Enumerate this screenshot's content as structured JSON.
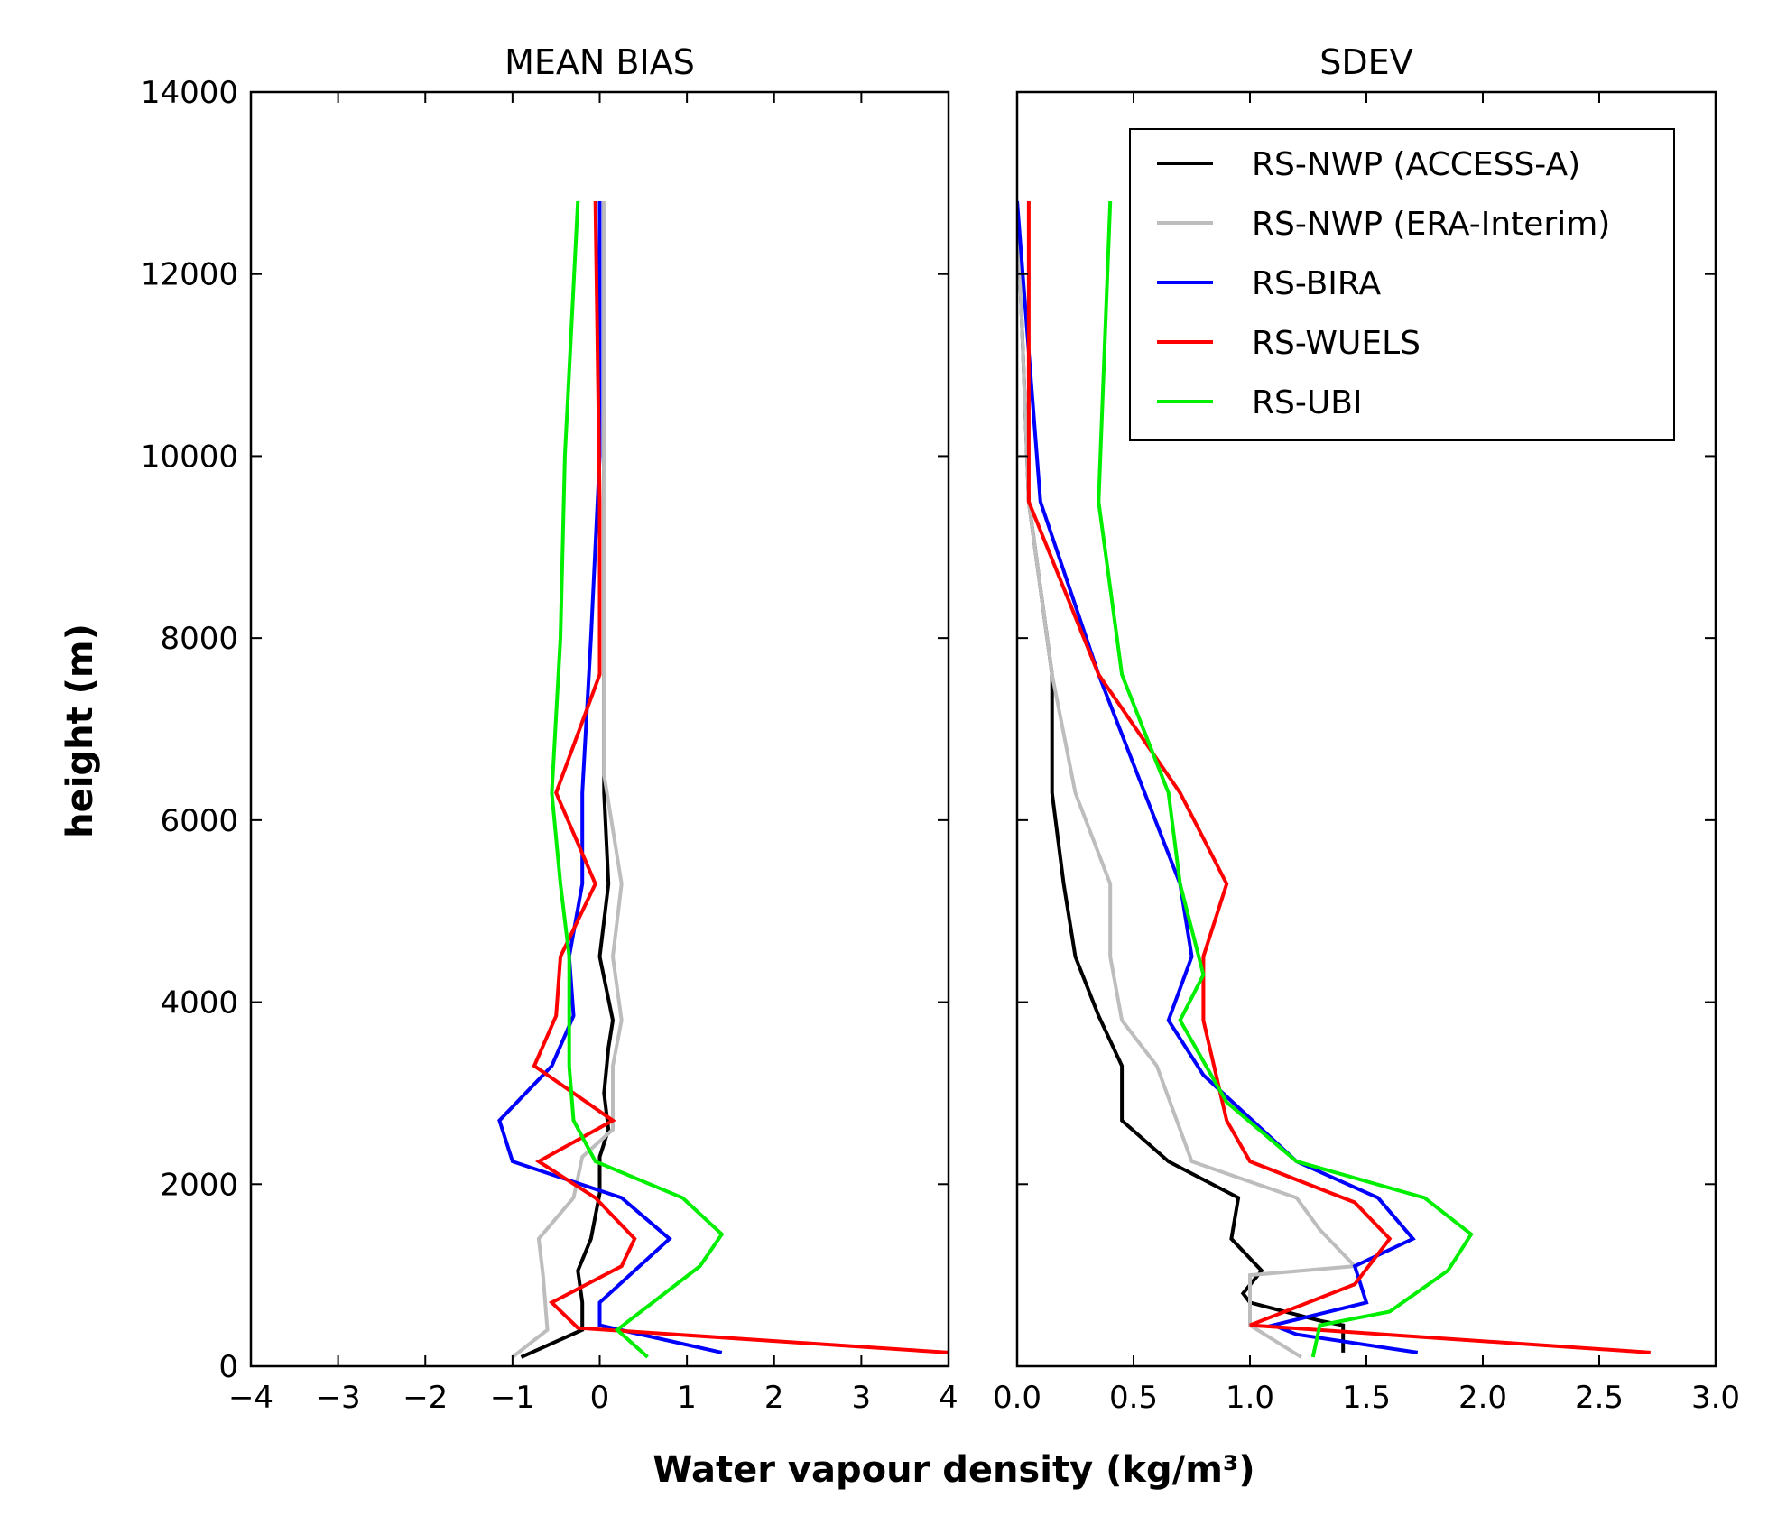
{
  "chart_data": [
    {
      "type": "line",
      "title": "MEAN BIAS",
      "xlabel": "Water vapour density (kg/m³)",
      "ylabel": "height (m)",
      "xlim": [
        -4,
        4
      ],
      "ylim": [
        0,
        14000
      ],
      "xticks": [
        "−4",
        "−3",
        "−2",
        "−1",
        "0",
        "1",
        "2",
        "3",
        "4"
      ],
      "yticks": [
        "0",
        "2000",
        "4000",
        "6000",
        "8000",
        "10000",
        "12000",
        "14000"
      ],
      "series": [
        {
          "name": "RS-NWP (ACCESS-A)",
          "color": "#000000",
          "points": [
            [
              -0.9,
              100
            ],
            [
              -0.2,
              400
            ],
            [
              -0.2,
              700
            ],
            [
              -0.25,
              1050
            ],
            [
              -0.1,
              1400
            ],
            [
              0.0,
              1900
            ],
            [
              0.0,
              2300
            ],
            [
              0.1,
              2600
            ],
            [
              0.05,
              3000
            ],
            [
              0.1,
              3500
            ],
            [
              0.15,
              3800
            ],
            [
              0.0,
              4500
            ],
            [
              0.1,
              5300
            ],
            [
              0.05,
              6300
            ],
            [
              0.05,
              7500
            ],
            [
              0.05,
              9500
            ],
            [
              0.05,
              12800
            ]
          ]
        },
        {
          "name": "RS-NWP (ERA-Interim)",
          "color": "#bdbdbd",
          "points": [
            [
              -1.0,
              100
            ],
            [
              -0.6,
              400
            ],
            [
              -0.65,
              1000
            ],
            [
              -0.7,
              1400
            ],
            [
              -0.3,
              1850
            ],
            [
              -0.2,
              2300
            ],
            [
              0.15,
              2600
            ],
            [
              0.15,
              3300
            ],
            [
              0.25,
              3800
            ],
            [
              0.15,
              4500
            ],
            [
              0.25,
              5300
            ],
            [
              0.05,
              6500
            ],
            [
              0.05,
              9500
            ],
            [
              0.05,
              12800
            ]
          ]
        },
        {
          "name": "RS-BIRA",
          "color": "#0000ff",
          "points": [
            [
              1.4,
              150
            ],
            [
              0.0,
              450
            ],
            [
              0.0,
              700
            ],
            [
              0.8,
              1400
            ],
            [
              0.25,
              1850
            ],
            [
              -1.0,
              2250
            ],
            [
              -1.15,
              2700
            ],
            [
              -0.55,
              3300
            ],
            [
              -0.3,
              3850
            ],
            [
              -0.35,
              4500
            ],
            [
              -0.2,
              5300
            ],
            [
              -0.2,
              6300
            ],
            [
              -0.1,
              8000
            ],
            [
              0.0,
              10000
            ],
            [
              0.0,
              12800
            ]
          ]
        },
        {
          "name": "RS-WUELS",
          "color": "#ff0000",
          "points": [
            [
              4.0,
              150
            ],
            [
              -0.25,
              420
            ],
            [
              -0.55,
              700
            ],
            [
              0.25,
              1100
            ],
            [
              0.4,
              1400
            ],
            [
              -0.05,
              1850
            ],
            [
              -0.7,
              2250
            ],
            [
              0.15,
              2700
            ],
            [
              -0.75,
              3300
            ],
            [
              -0.5,
              3850
            ],
            [
              -0.45,
              4500
            ],
            [
              -0.05,
              5300
            ],
            [
              -0.5,
              6300
            ],
            [
              0.0,
              7600
            ],
            [
              0.0,
              9500
            ],
            [
              -0.05,
              12800
            ]
          ]
        },
        {
          "name": "RS-UBI",
          "color": "#00ee00",
          "points": [
            [
              0.55,
              100
            ],
            [
              0.2,
              400
            ],
            [
              1.15,
              1100
            ],
            [
              1.4,
              1450
            ],
            [
              0.95,
              1850
            ],
            [
              -0.05,
              2250
            ],
            [
              -0.3,
              2700
            ],
            [
              -0.35,
              3300
            ],
            [
              -0.35,
              4500
            ],
            [
              -0.45,
              5300
            ],
            [
              -0.55,
              6300
            ],
            [
              -0.45,
              8000
            ],
            [
              -0.4,
              10000
            ],
            [
              -0.25,
              12800
            ]
          ]
        }
      ]
    },
    {
      "type": "line",
      "title": "SDEV",
      "xlabel": "Water vapour density (kg/m³)",
      "ylabel": "height (m)",
      "xlim": [
        0,
        3
      ],
      "ylim": [
        0,
        14000
      ],
      "xticks": [
        "0.0",
        "0.5",
        "1.0",
        "1.5",
        "2.0",
        "2.5",
        "3.0"
      ],
      "yticks": [],
      "legend": {
        "position": "top-right",
        "entries": [
          "RS-NWP (ACCESS-A)",
          "RS-NWP (ERA-Interim)",
          "RS-BIRA",
          "RS-WUELS",
          "RS-UBI"
        ]
      },
      "series": [
        {
          "name": "RS-NWP (ACCESS-A)",
          "color": "#000000",
          "points": [
            [
              1.4,
              150
            ],
            [
              1.4,
              450
            ],
            [
              1.3,
              500
            ],
            [
              1.0,
              700
            ],
            [
              0.97,
              800
            ],
            [
              1.05,
              1050
            ],
            [
              0.92,
              1400
            ],
            [
              0.95,
              1850
            ],
            [
              0.65,
              2250
            ],
            [
              0.45,
              2700
            ],
            [
              0.45,
              3300
            ],
            [
              0.35,
              3850
            ],
            [
              0.25,
              4500
            ],
            [
              0.2,
              5300
            ],
            [
              0.15,
              6300
            ],
            [
              0.15,
              7600
            ],
            [
              0.05,
              9500
            ],
            [
              0.0,
              12800
            ]
          ]
        },
        {
          "name": "RS-NWP (ERA-Interim)",
          "color": "#bdbdbd",
          "points": [
            [
              1.22,
              100
            ],
            [
              1.0,
              450
            ],
            [
              1.0,
              1000
            ],
            [
              1.45,
              1100
            ],
            [
              1.3,
              1500
            ],
            [
              1.2,
              1850
            ],
            [
              0.75,
              2250
            ],
            [
              0.6,
              3300
            ],
            [
              0.45,
              3800
            ],
            [
              0.4,
              4500
            ],
            [
              0.4,
              5300
            ],
            [
              0.25,
              6300
            ],
            [
              0.15,
              7600
            ],
            [
              0.05,
              9500
            ],
            [
              0.0,
              12800
            ]
          ]
        },
        {
          "name": "RS-BIRA",
          "color": "#0000ff",
          "points": [
            [
              1.72,
              150
            ],
            [
              1.2,
              350
            ],
            [
              1.1,
              450
            ],
            [
              1.5,
              700
            ],
            [
              1.45,
              1100
            ],
            [
              1.7,
              1400
            ],
            [
              1.55,
              1850
            ],
            [
              1.2,
              2250
            ],
            [
              0.8,
              3200
            ],
            [
              0.65,
              3800
            ],
            [
              0.75,
              4500
            ],
            [
              0.7,
              5300
            ],
            [
              0.35,
              7600
            ],
            [
              0.1,
              9500
            ],
            [
              0.0,
              12800
            ]
          ]
        },
        {
          "name": "RS-WUELS",
          "color": "#ff0000",
          "points": [
            [
              2.72,
              150
            ],
            [
              1.0,
              450
            ],
            [
              1.45,
              900
            ],
            [
              1.6,
              1400
            ],
            [
              1.45,
              1800
            ],
            [
              1.0,
              2250
            ],
            [
              0.9,
              2700
            ],
            [
              0.8,
              3800
            ],
            [
              0.8,
              4500
            ],
            [
              0.9,
              5300
            ],
            [
              0.7,
              6300
            ],
            [
              0.35,
              7600
            ],
            [
              0.05,
              9500
            ],
            [
              0.05,
              12800
            ]
          ]
        },
        {
          "name": "RS-UBI",
          "color": "#00ee00",
          "points": [
            [
              1.27,
              100
            ],
            [
              1.3,
              450
            ],
            [
              1.6,
              600
            ],
            [
              1.85,
              1050
            ],
            [
              1.95,
              1450
            ],
            [
              1.75,
              1850
            ],
            [
              1.2,
              2250
            ],
            [
              0.9,
              2900
            ],
            [
              0.7,
              3800
            ],
            [
              0.8,
              4300
            ],
            [
              0.7,
              5300
            ],
            [
              0.65,
              6300
            ],
            [
              0.45,
              7600
            ],
            [
              0.35,
              9500
            ],
            [
              0.4,
              12800
            ]
          ]
        }
      ]
    }
  ]
}
